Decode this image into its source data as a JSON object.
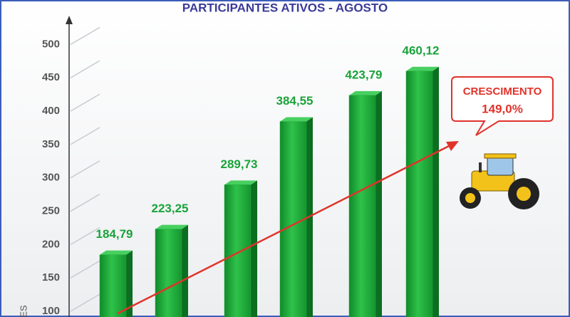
{
  "chart_data": {
    "type": "bar",
    "title": "PARTICIPANTES ATIVOS - AGOSTO",
    "y_label": "ES",
    "categories": [
      null,
      null,
      null,
      null,
      null,
      null
    ],
    "values": [
      184.79,
      223.25,
      289.73,
      384.55,
      423.79,
      460.12
    ],
    "value_labels": [
      "184,79",
      "223,25",
      "289,73",
      "384,55",
      "423,79",
      "460,12"
    ],
    "color": "#1fa83a",
    "ylim": [
      100,
      540
    ],
    "yticks": [
      100,
      150,
      200,
      250,
      300,
      350,
      400,
      450,
      500
    ],
    "grid": true,
    "annotation": {
      "title": "CRESCIMENTO",
      "value": "149,0%"
    }
  }
}
